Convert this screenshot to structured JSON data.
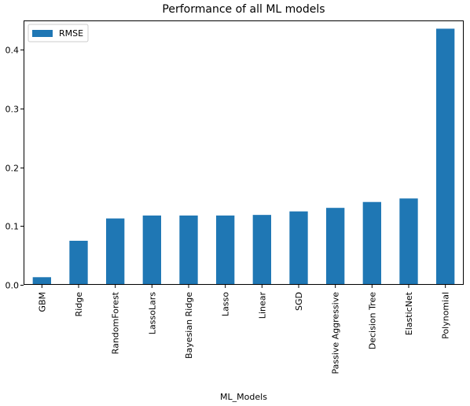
{
  "chart_data": {
    "type": "bar",
    "title": "Performance of all ML models",
    "xlabel": "ML_Models",
    "ylabel": "",
    "categories": [
      "GBM",
      "Ridge",
      "RandomForest",
      "LassoLars",
      "Bayesian Ridge",
      "Lasso",
      "Linear",
      "SGD",
      "Passive Aggressive",
      "Decision Tree",
      "ElasticNet",
      "Polynomial"
    ],
    "series": [
      {
        "name": "RMSE",
        "color": "#1f77b4",
        "values": [
          0.013,
          0.075,
          0.113,
          0.118,
          0.118,
          0.118,
          0.119,
          0.125,
          0.131,
          0.141,
          0.147,
          0.436
        ]
      }
    ],
    "ylim": [
      0,
      0.45
    ],
    "yticks": [
      0.0,
      0.1,
      0.2,
      0.3,
      0.4
    ],
    "ytick_labels": [
      "0.0",
      "0.1",
      "0.2",
      "0.3",
      "0.4"
    ],
    "grid": false,
    "legend_position": "upper left"
  }
}
